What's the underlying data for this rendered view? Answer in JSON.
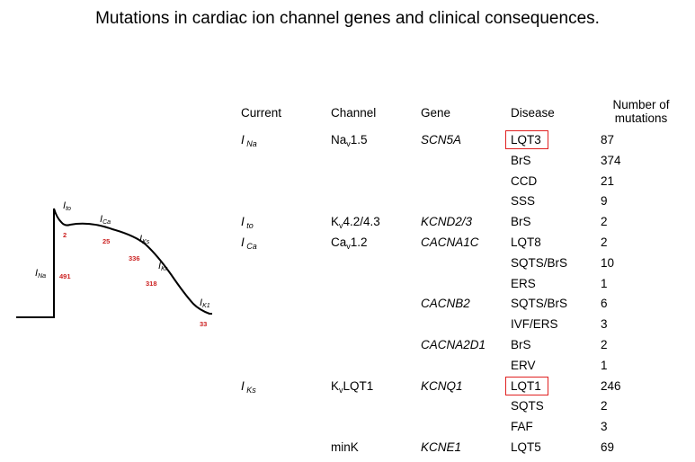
{
  "title": "Mutations in cardiac ion channel genes and clinical consequences.",
  "colors": {
    "highlight": "#e02020",
    "annotation": "#cc2222"
  },
  "table": {
    "headers": {
      "current": "Current",
      "channel": "Channel",
      "gene": "Gene",
      "disease": "Disease",
      "mutations_line1": "Number of",
      "mutations_line2": "mutations"
    },
    "groups": [
      {
        "current_main": "I",
        "current_sub": "Na",
        "channels": [
          {
            "main": "Na",
            "sub": "v",
            "rest": "1.5",
            "genes": [
              {
                "name": "SCN5A",
                "diseases": [
                  {
                    "name": "LQT3",
                    "count": "87",
                    "highlight": true
                  },
                  {
                    "name": "BrS",
                    "count": "374"
                  },
                  {
                    "name": "CCD",
                    "count": "21"
                  },
                  {
                    "name": "SSS",
                    "count": "9"
                  }
                ]
              }
            ]
          }
        ]
      },
      {
        "current_main": "I",
        "current_sub": "to",
        "channels": [
          {
            "main": "K",
            "sub": "v",
            "rest": "4.2/4.3",
            "genes": [
              {
                "name": "KCND2/3",
                "diseases": [
                  {
                    "name": "BrS",
                    "count": "2"
                  }
                ]
              }
            ]
          }
        ]
      },
      {
        "current_main": "I",
        "current_sub": "Ca",
        "channels": [
          {
            "main": "Ca",
            "sub": "v",
            "rest": "1.2",
            "genes": [
              {
                "name": "CACNA1C",
                "diseases": [
                  {
                    "name": "LQT8",
                    "count": "2"
                  },
                  {
                    "name": "SQTS/BrS",
                    "count": "10"
                  },
                  {
                    "name": "ERS",
                    "count": "1"
                  }
                ]
              },
              {
                "name": "CACNB2",
                "diseases": [
                  {
                    "name": "SQTS/BrS",
                    "count": "6"
                  },
                  {
                    "name": "IVF/ERS",
                    "count": "3"
                  }
                ]
              },
              {
                "name": "CACNA2D1",
                "diseases": [
                  {
                    "name": "BrS",
                    "count": "2"
                  },
                  {
                    "name": "ERV",
                    "count": "1"
                  }
                ]
              }
            ]
          }
        ]
      },
      {
        "current_main": "I",
        "current_sub": "Ks",
        "channels": [
          {
            "main": "K",
            "sub": "v",
            "rest": "LQT1",
            "genes": [
              {
                "name": "KCNQ1",
                "diseases": [
                  {
                    "name": "LQT1",
                    "count": "246",
                    "highlight": true
                  },
                  {
                    "name": "SQTS",
                    "count": "2"
                  },
                  {
                    "name": "FAF",
                    "count": "3"
                  }
                ]
              }
            ]
          },
          {
            "main": "minK",
            "sub": "",
            "rest": "",
            "genes": [
              {
                "name": "KCNE1",
                "diseases": [
                  {
                    "name": "LQT5",
                    "count": "69"
                  }
                ]
              }
            ]
          }
        ]
      }
    ]
  },
  "action_potential": {
    "labels": [
      {
        "main": "I",
        "sub": "to"
      },
      {
        "main": "I",
        "sub": "Ca"
      },
      {
        "main": "I",
        "sub": "Ks"
      },
      {
        "main": "I",
        "sub": "Kr"
      },
      {
        "main": "I",
        "sub": "Na"
      },
      {
        "main": "I",
        "sub": "K1"
      }
    ],
    "counts": [
      "2",
      "25",
      "336",
      "318",
      "491",
      "33"
    ]
  }
}
